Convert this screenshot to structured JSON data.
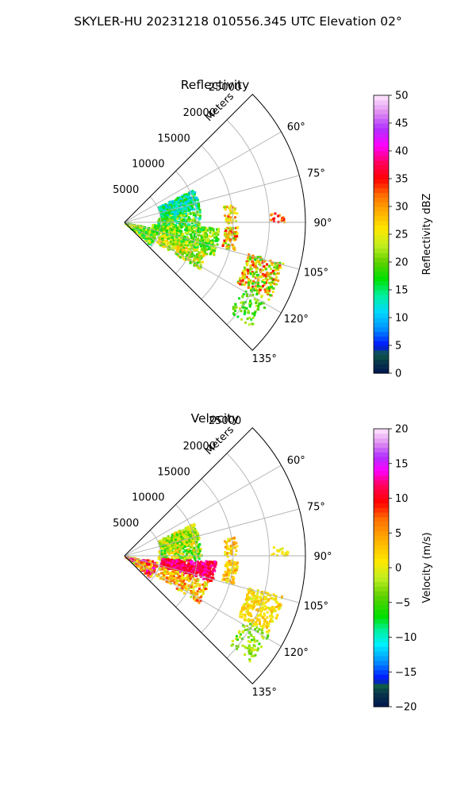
{
  "figure": {
    "suptitle": "SKYLER-HU  20231218  010556.345 UTC Elevation 02°"
  },
  "chart_data": [
    {
      "type": "polar-sector",
      "title": "Reflectivity",
      "radial_label": "Meters",
      "r_ticks": [
        5000,
        10000,
        15000,
        20000,
        25000
      ],
      "r_tick_labels": [
        "5000",
        "10000",
        "15000",
        "20000",
        "25000"
      ],
      "r_max": 25000,
      "theta_ticks_deg": [
        60,
        75,
        90,
        105,
        120,
        135
      ],
      "theta_tick_labels": [
        "60°",
        "75°",
        "90°",
        "105°",
        "120°",
        "135°"
      ],
      "theta_range_deg": [
        45,
        135
      ],
      "colorbar": {
        "label": "Reflectivity dBZ",
        "min": 0,
        "max": 50,
        "ticks": [
          0,
          5,
          10,
          15,
          20,
          25,
          30,
          35,
          40,
          45,
          50
        ],
        "tick_labels": [
          "0",
          "5",
          "10",
          "15",
          "20",
          "25",
          "30",
          "35",
          "40",
          "45",
          "50"
        ],
        "stops": [
          {
            "v": 0,
            "color": "#00154f"
          },
          {
            "v": 2,
            "color": "#07364a"
          },
          {
            "v": 3.5,
            "color": "#0f5a46"
          },
          {
            "v": 5,
            "color": "#0010ff"
          },
          {
            "v": 8,
            "color": "#0090ff"
          },
          {
            "v": 11,
            "color": "#00d8ff"
          },
          {
            "v": 14,
            "color": "#00f0a0"
          },
          {
            "v": 17,
            "color": "#00e000"
          },
          {
            "v": 20,
            "color": "#60d000"
          },
          {
            "v": 23,
            "color": "#c0ee20"
          },
          {
            "v": 26,
            "color": "#ffe800"
          },
          {
            "v": 29,
            "color": "#ffb000"
          },
          {
            "v": 32,
            "color": "#ff7000"
          },
          {
            "v": 35,
            "color": "#ff0000"
          },
          {
            "v": 38,
            "color": "#ff0060"
          },
          {
            "v": 41,
            "color": "#ff00ff"
          },
          {
            "v": 44,
            "color": "#b030ff"
          },
          {
            "v": 47,
            "color": "#e090f0"
          },
          {
            "v": 50,
            "color": "#ffe8ff"
          }
        ]
      }
    },
    {
      "type": "polar-sector",
      "title": "Velocity",
      "radial_label": "Meters",
      "r_ticks": [
        5000,
        10000,
        15000,
        20000,
        25000
      ],
      "r_tick_labels": [
        "5000",
        "10000",
        "15000",
        "20000",
        "25000"
      ],
      "r_max": 25000,
      "theta_ticks_deg": [
        60,
        75,
        90,
        105,
        120,
        135
      ],
      "theta_tick_labels": [
        "60°",
        "75°",
        "90°",
        "105°",
        "120°",
        "135°"
      ],
      "theta_range_deg": [
        45,
        135
      ],
      "colorbar": {
        "label": "Velocity (m/s)",
        "min": -20,
        "max": 20,
        "ticks": [
          -20,
          -15,
          -10,
          -5,
          0,
          5,
          10,
          15,
          20
        ],
        "tick_labels": [
          "−20",
          "−15",
          "−10",
          "−5",
          "0",
          "5",
          "10",
          "15",
          "20"
        ],
        "stops": [
          {
            "v": -20,
            "color": "#00154f"
          },
          {
            "v": -18,
            "color": "#07364a"
          },
          {
            "v": -17,
            "color": "#0f5a46"
          },
          {
            "v": -16,
            "color": "#0010ff"
          },
          {
            "v": -13.5,
            "color": "#0090ff"
          },
          {
            "v": -11,
            "color": "#00f0ff"
          },
          {
            "v": -9,
            "color": "#00f0a0"
          },
          {
            "v": -7,
            "color": "#00e000"
          },
          {
            "v": -4,
            "color": "#60d000"
          },
          {
            "v": -1.5,
            "color": "#c0ee20"
          },
          {
            "v": 1,
            "color": "#ffe800"
          },
          {
            "v": 4,
            "color": "#ffb000"
          },
          {
            "v": 7,
            "color": "#ff7000"
          },
          {
            "v": 9.5,
            "color": "#ff0000"
          },
          {
            "v": 12,
            "color": "#ff0060"
          },
          {
            "v": 14,
            "color": "#ff00ff"
          },
          {
            "v": 16,
            "color": "#b030ff"
          },
          {
            "v": 18,
            "color": "#e090f0"
          },
          {
            "v": 20,
            "color": "#ffe8ff"
          }
        ]
      }
    }
  ]
}
